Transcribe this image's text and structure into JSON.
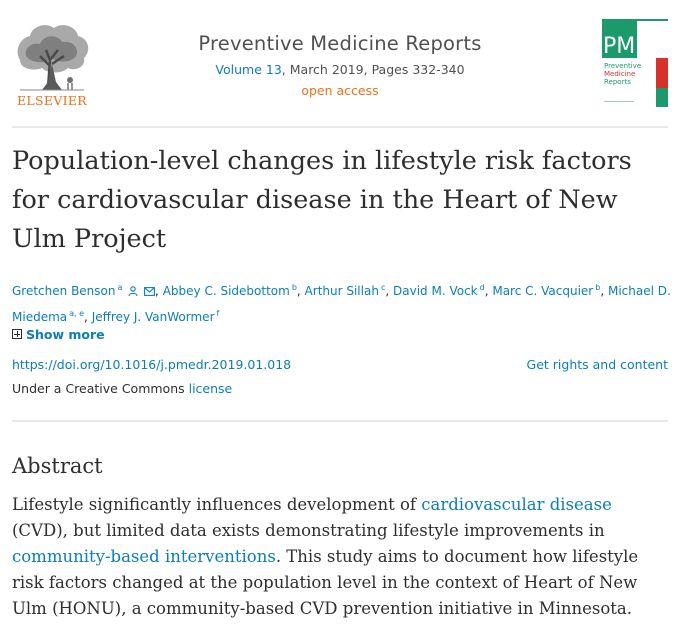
{
  "publisher": {
    "logo_text": "ELSEVIER"
  },
  "journal": {
    "title": "Preventive Medicine Reports",
    "volume_link": "Volume 13",
    "issue_details": ", March 2019, Pages 332-340",
    "access": "open access"
  },
  "cover": {
    "abbrev": "PMR",
    "line1": "Preventive",
    "line2": "Medicine",
    "line3": "Reports"
  },
  "article": {
    "title": "Population-level changes in lifestyle risk factors for cardiovascular disease in the Heart of New Ulm Project",
    "authors": [
      {
        "name": "Gretchen Benson",
        "sup": "a"
      },
      {
        "name": "Abbey C. Sidebottom",
        "sup": "b"
      },
      {
        "name": "Arthur Sillah",
        "sup": "c"
      },
      {
        "name": "David M. Vock",
        "sup": "d"
      },
      {
        "name": "Marc C. Vacquier",
        "sup": "b"
      },
      {
        "name": "Michael D. Miedema",
        "sup": "a, e"
      },
      {
        "name": "Jeffrey J. VanWormer",
        "sup": "f"
      }
    ],
    "separator": ",",
    "show_more": "Show more",
    "doi": "https://doi.org/10.1016/j.pmedr.2019.01.018",
    "rights_link": "Get rights and content",
    "license_prefix": "Under a Creative Commons ",
    "license_link": "license"
  },
  "abstract": {
    "heading": "Abstract",
    "text_1": "Lifestyle significantly influences development of ",
    "link_1": "cardiovascular disease",
    "text_2": " (CVD), but limited data exists demonstrating lifestyle improvements in ",
    "link_2": "community-based interventions",
    "text_3": ". This study aims to document how lifestyle risk factors changed at the population level in the context of Heart of New Ulm (HONU), a community-based CVD prevention initiative in Minnesota."
  },
  "colors": {
    "link": "#0c7dbb",
    "accent_orange": "#e9711c",
    "cover_green": "#1c9a6c",
    "cover_red": "#d6322b"
  }
}
